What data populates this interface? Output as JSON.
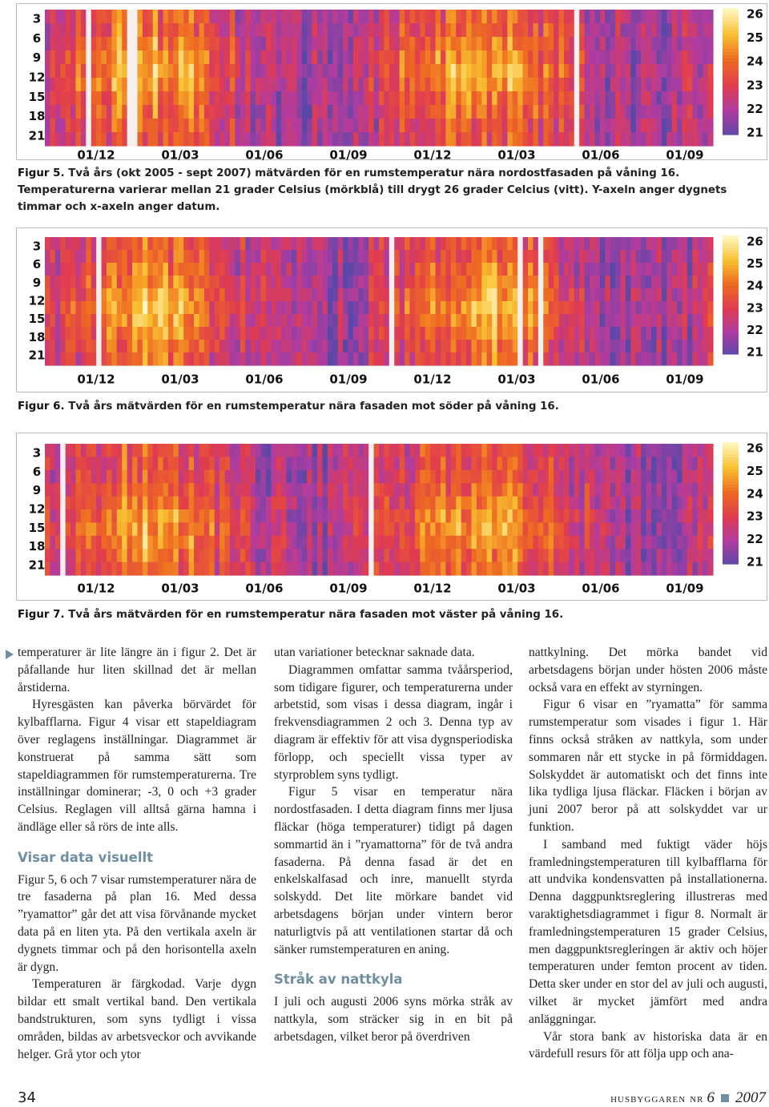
{
  "figures": [
    {
      "y_ticks": [
        "3",
        "6",
        "9",
        "12",
        "15",
        "18",
        "21"
      ],
      "x_ticks": [
        "01/12",
        "01/03",
        "01/06",
        "01/09",
        "01/12",
        "01/03",
        "01/06",
        "01/09"
      ],
      "colorbar_ticks": [
        "26",
        "25",
        "24",
        "23",
        "22",
        "21"
      ],
      "caption": {
        "label": "Figur 5.",
        "text": "Två års (okt 2005 - sept 2007) mätvärden för en rumstemperatur nära nordostfasaden på våning 16. Temperaturerna varierar mellan 21 grader Celsius (mörkblå) till drygt 26 grader Celcius (vitt). Y-axeln anger dygnets timmar och x-axeln anger datum."
      }
    },
    {
      "y_ticks": [
        "3",
        "6",
        "9",
        "12",
        "15",
        "18",
        "21"
      ],
      "x_ticks": [
        "01/12",
        "01/03",
        "01/06",
        "01/09",
        "01/12",
        "01/03",
        "01/06",
        "01/09"
      ],
      "colorbar_ticks": [
        "26",
        "25",
        "24",
        "23",
        "22",
        "21"
      ],
      "caption": {
        "label": "Figur 6.",
        "text": "Två års mätvärden för en rumstemperatur nära fasaden mot söder på våning 16."
      }
    },
    {
      "y_ticks": [
        "3",
        "6",
        "9",
        "12",
        "15",
        "18",
        "21"
      ],
      "x_ticks": [
        "01/12",
        "01/03",
        "01/06",
        "01/09",
        "01/12",
        "01/03",
        "01/06",
        "01/09"
      ],
      "colorbar_ticks": [
        "26",
        "25",
        "24",
        "23",
        "22",
        "21"
      ],
      "caption": {
        "label": "Figur 7.",
        "text": "Två års mätvärden för en rumstemperatur nära fasaden mot väster på våning 16."
      }
    }
  ],
  "text_columns": [
    {
      "before": [
        "temperaturer är lite längre än i figur 2. Det är påfallande hur liten skillnad det är mellan årstiderna.",
        "Hyresgästen kan påverka börvärdet för kylbafflarna. Figur 4 visar ett stapeldiagram över reglagens inställningar. Diagrammet är konstruerat på samma sätt som stapeldiagrammen för rumstemperaturerna. Tre inställningar dominerar; -3, 0 och +3 grader Celsius. Reglagen vill alltså gärna hamna i ändläge eller så rörs de inte alls."
      ],
      "heading": "Visar data visuellt",
      "after": [
        "Figur 5, 6 och 7 visar rumstemperaturer nära de tre fasaderna på plan 16. Med dessa ”ryamattor” går det att visa förvånande mycket data på en liten yta. På den vertikala axeln är dygnets timmar och på den horisontella axeln är dygn.",
        "Temperaturen är färgkodad. Varje dygn bildar ett smalt vertikal band. Den vertikala bandstrukturen, som syns tydligt i vissa områden, bildas av arbetsveckor och avvikande helger. Grå ytor och ytor"
      ]
    },
    {
      "before": [
        "utan variationer betecknar saknade data.",
        "Diagrammen omfattar samma tvåårsperiod, som tidigare figurer, och temperaturerna under arbetstid, som visas i dessa diagram, ingår i frekvensdiagrammen 2 och 3. Denna typ av diagram är effektiv för att visa dygnsperiodiska förlopp, och speciellt vissa typer av styrproblem syns tydligt.",
        "Figur 5 visar en temperatur nära nordostfasaden. I detta diagram finns mer ljusa fläckar (höga temperaturer) tidigt på dagen sommartid än i ”ryamattorna” för de två andra fasaderna. På denna fasad är det en enkelskalfasad och inre, manuellt styrda solskydd. Det lite mörkare bandet vid arbetsdagens början under vintern beror naturligtvis på att ventilationen startar då och sänker rumstemperaturen en aning."
      ],
      "heading": "Stråk av nattkyla",
      "after": [
        "I juli och augusti 2006 syns mörka stråk av nattkyla, som sträcker sig in en bit på arbetsdagen, vilket beror på överdriven"
      ]
    },
    {
      "before": [
        "nattkylning. Det mörka bandet vid arbetsdagens början under hösten 2006 måste också vara en effekt av styrningen.",
        "Figur 6 visar en ”ryamatta” för samma rumstemperatur som visades i figur 1. Här finns också stråken av nattkyla, som under sommaren når ett stycke in på förmiddagen. Solskyddet är automatiskt och det finns inte lika tydliga ljusa fläckar. Fläcken i början av juni 2007 beror på att solskyddet var ur funktion.",
        "I samband med fuktigt väder höjs framledningstemperaturen till kylbafflarna för att undvika kondensvatten på installationerna. Denna daggpunktsreglering illustreras med varaktighetsdiagrammet i figur 8. Normalt är framledningstemperaturen 15 grader Celsius, men daggpunktsregleringen är aktiv och höjer temperaturen under femton procent av tiden. Detta sker under en stor del av juli och augusti, vilket är mycket jämfört med andra anläggningar.",
        "Vår stora bank av historiska data är en värdefull resurs för att följa upp och ana-"
      ]
    }
  ],
  "footer": {
    "page_number": "34",
    "publication": "Husbyggaren nr",
    "issue": "6",
    "year": "2007"
  }
}
